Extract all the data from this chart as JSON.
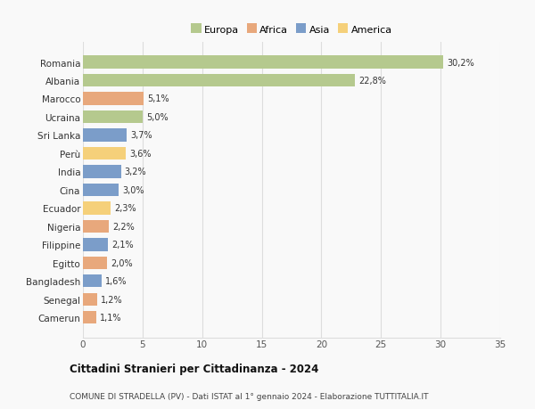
{
  "countries": [
    "Romania",
    "Albania",
    "Marocco",
    "Ucraina",
    "Sri Lanka",
    "Perù",
    "India",
    "Cina",
    "Ecuador",
    "Nigeria",
    "Filippine",
    "Egitto",
    "Bangladesh",
    "Senegal",
    "Camerun"
  ],
  "values": [
    30.2,
    22.8,
    5.1,
    5.0,
    3.7,
    3.6,
    3.2,
    3.0,
    2.3,
    2.2,
    2.1,
    2.0,
    1.6,
    1.2,
    1.1
  ],
  "labels": [
    "30,2%",
    "22,8%",
    "5,1%",
    "5,0%",
    "3,7%",
    "3,6%",
    "3,2%",
    "3,0%",
    "2,3%",
    "2,2%",
    "2,1%",
    "2,0%",
    "1,6%",
    "1,2%",
    "1,1%"
  ],
  "continent": [
    "Europa",
    "Europa",
    "Africa",
    "Europa",
    "Asia",
    "America",
    "Asia",
    "Asia",
    "America",
    "Africa",
    "Asia",
    "Africa",
    "Asia",
    "Africa",
    "Africa"
  ],
  "colors": {
    "Europa": "#b5c98e",
    "Africa": "#e8a87c",
    "Asia": "#7b9dc9",
    "America": "#f5d07a"
  },
  "legend_order": [
    "Europa",
    "Africa",
    "Asia",
    "America"
  ],
  "title": "Cittadini Stranieri per Cittadinanza - 2024",
  "subtitle": "COMUNE DI STRADELLA (PV) - Dati ISTAT al 1° gennaio 2024 - Elaborazione TUTTITALIA.IT",
  "xlim": [
    0,
    35
  ],
  "xticks": [
    0,
    5,
    10,
    15,
    20,
    25,
    30,
    35
  ],
  "background_color": "#f9f9f9",
  "grid_color": "#dddddd",
  "bar_height": 0.7
}
